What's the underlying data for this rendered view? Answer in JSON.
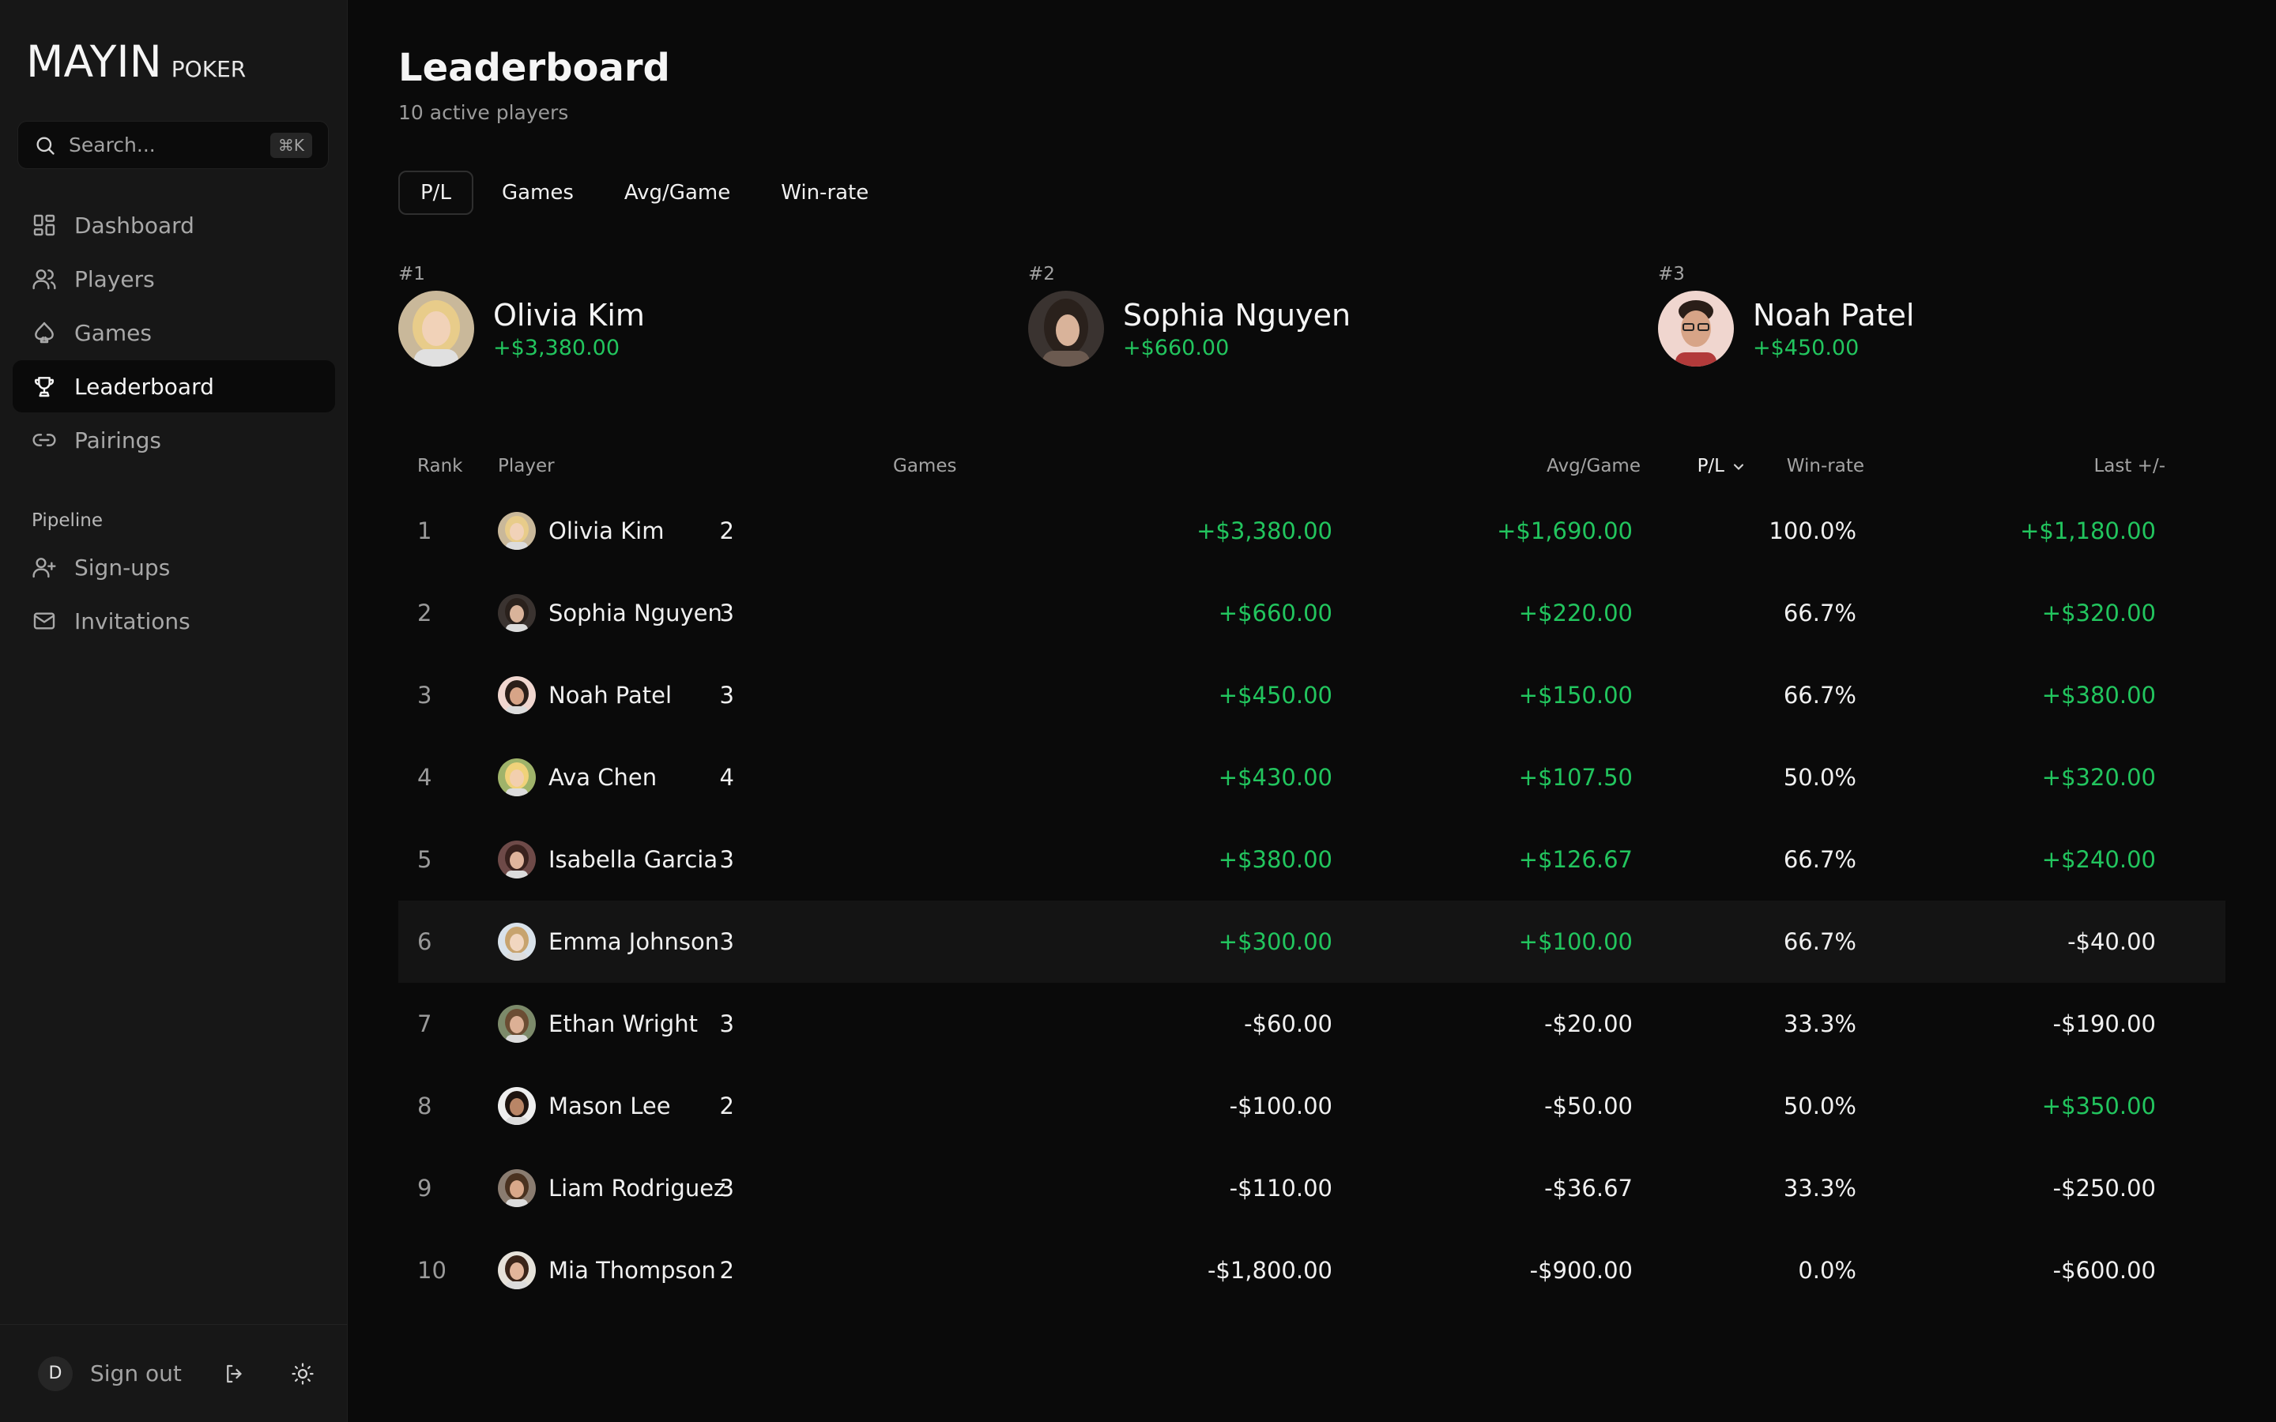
{
  "brand": {
    "name": "MAYIN",
    "sub": "POKER"
  },
  "search": {
    "placeholder": "Search...",
    "shortcut": "⌘K"
  },
  "nav": {
    "items": [
      {
        "label": "Dashboard",
        "icon": "dashboard-icon"
      },
      {
        "label": "Players",
        "icon": "users-icon"
      },
      {
        "label": "Games",
        "icon": "spade-icon"
      },
      {
        "label": "Leaderboard",
        "icon": "trophy-icon",
        "active": true
      },
      {
        "label": "Pairings",
        "icon": "link-icon"
      }
    ],
    "section_label": "Pipeline",
    "pipeline": [
      {
        "label": "Sign-ups",
        "icon": "user-plus-icon"
      },
      {
        "label": "Invitations",
        "icon": "mail-icon"
      }
    ]
  },
  "footer": {
    "avatar_initial": "D",
    "signout": "Sign out"
  },
  "page": {
    "title": "Leaderboard",
    "subtitle": "10 active players"
  },
  "tabs": [
    "P/L",
    "Games",
    "Avg/Game",
    "Win-rate"
  ],
  "podium": [
    {
      "rank": "#1",
      "name": "Olivia Kim",
      "value": "+$3,380.00"
    },
    {
      "rank": "#2",
      "name": "Sophia Nguyen",
      "value": "+$660.00"
    },
    {
      "rank": "#3",
      "name": "Noah Patel",
      "value": "+$450.00"
    }
  ],
  "table": {
    "headers": [
      "Rank",
      "Player",
      "Games",
      "P/L",
      "Avg/Game",
      "Win-rate",
      "Last +/-"
    ],
    "rows": [
      {
        "rank": "1",
        "name": "Olivia Kim",
        "games": "2",
        "pl": "+$3,380.00",
        "avg": "+$1,690.00",
        "wr": "100.0%",
        "last": "+$1,180.00"
      },
      {
        "rank": "2",
        "name": "Sophia Nguyen",
        "games": "3",
        "pl": "+$660.00",
        "avg": "+$220.00",
        "wr": "66.7%",
        "last": "+$320.00"
      },
      {
        "rank": "3",
        "name": "Noah Patel",
        "games": "3",
        "pl": "+$450.00",
        "avg": "+$150.00",
        "wr": "66.7%",
        "last": "+$380.00"
      },
      {
        "rank": "4",
        "name": "Ava Chen",
        "games": "4",
        "pl": "+$430.00",
        "avg": "+$107.50",
        "wr": "50.0%",
        "last": "+$320.00"
      },
      {
        "rank": "5",
        "name": "Isabella Garcia",
        "games": "3",
        "pl": "+$380.00",
        "avg": "+$126.67",
        "wr": "66.7%",
        "last": "+$240.00"
      },
      {
        "rank": "6",
        "name": "Emma Johnson",
        "games": "3",
        "pl": "+$300.00",
        "avg": "+$100.00",
        "wr": "66.7%",
        "last": "-$40.00"
      },
      {
        "rank": "7",
        "name": "Ethan Wright",
        "games": "3",
        "pl": "-$60.00",
        "avg": "-$20.00",
        "wr": "33.3%",
        "last": "-$190.00"
      },
      {
        "rank": "8",
        "name": "Mason Lee",
        "games": "2",
        "pl": "-$100.00",
        "avg": "-$50.00",
        "wr": "50.0%",
        "last": "+$350.00"
      },
      {
        "rank": "9",
        "name": "Liam Rodriguez",
        "games": "3",
        "pl": "-$110.00",
        "avg": "-$36.67",
        "wr": "33.3%",
        "last": "-$250.00"
      },
      {
        "rank": "10",
        "name": "Mia Thompson",
        "games": "2",
        "pl": "-$1,800.00",
        "avg": "-$900.00",
        "wr": "0.0%",
        "last": "-$600.00"
      }
    ]
  },
  "colors": {
    "positive": "#22c55e",
    "background": "#0a0a0a",
    "sidebar": "#171717"
  }
}
